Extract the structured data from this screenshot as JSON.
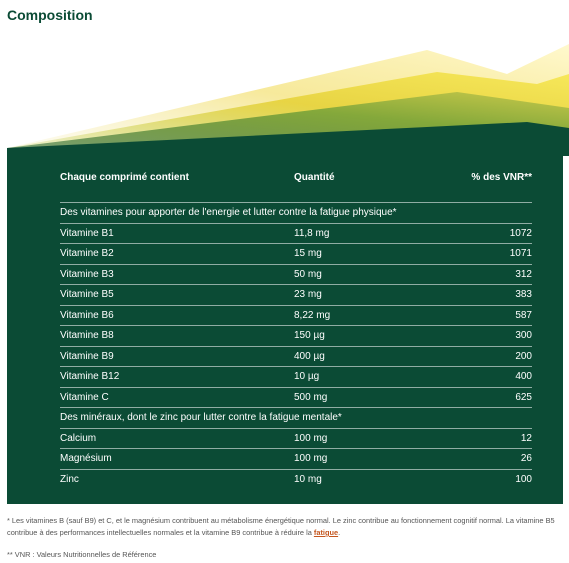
{
  "page_title": "Composition",
  "table": {
    "headers": {
      "name": "Chaque comprimé contient",
      "quantity": "Quantité",
      "vnr": "% des VNR**"
    },
    "sections": [
      {
        "title": "Des vitamines pour apporter de l'energie et lutter contre la fatigue physique*",
        "rows": [
          {
            "name": "Vitamine B1",
            "quantity": "11,8 mg",
            "vnr": "1072"
          },
          {
            "name": "Vitamine B2",
            "quantity": "15 mg",
            "vnr": "1071"
          },
          {
            "name": "Vitamine B3",
            "quantity": "50 mg",
            "vnr": "312"
          },
          {
            "name": "Vitamine B5",
            "quantity": "23 mg",
            "vnr": "383"
          },
          {
            "name": "Vitamine B6",
            "quantity": "8,22 mg",
            "vnr": "587"
          },
          {
            "name": "Vitamine B8",
            "quantity": "150 µg",
            "vnr": "300"
          },
          {
            "name": "Vitamine B9",
            "quantity": "400 µg",
            "vnr": "200"
          },
          {
            "name": "Vitamine B12",
            "quantity": "10 µg",
            "vnr": "400"
          },
          {
            "name": "Vitamine C",
            "quantity": "500 mg",
            "vnr": "625"
          }
        ]
      },
      {
        "title": "Des minéraux, dont le zinc pour lutter contre la fatigue mentale*",
        "rows": [
          {
            "name": "Calcium",
            "quantity": "100 mg",
            "vnr": "12"
          },
          {
            "name": "Magnésium",
            "quantity": "100 mg",
            "vnr": "26"
          },
          {
            "name": "Zinc",
            "quantity": "10 mg",
            "vnr": "100"
          }
        ]
      }
    ]
  },
  "footnotes": {
    "note1_text": "* Les vitamines B (sauf B9) et C, et le magnésium contribuent au métabolisme énergétique normal. Le zinc contribue au fonctionnement cognitif normal. La vitamine B5 contribue à des performances intellectuelles normales et la vitamine B9 contribue à réduire la ",
    "note1_link": "fatigue",
    "note1_end": ".",
    "note2_text": "** VNR : Valeurs Nutritionnelles de Référence"
  },
  "colors": {
    "brand_green": "#0b4b35",
    "link_orange": "#c4561e"
  }
}
